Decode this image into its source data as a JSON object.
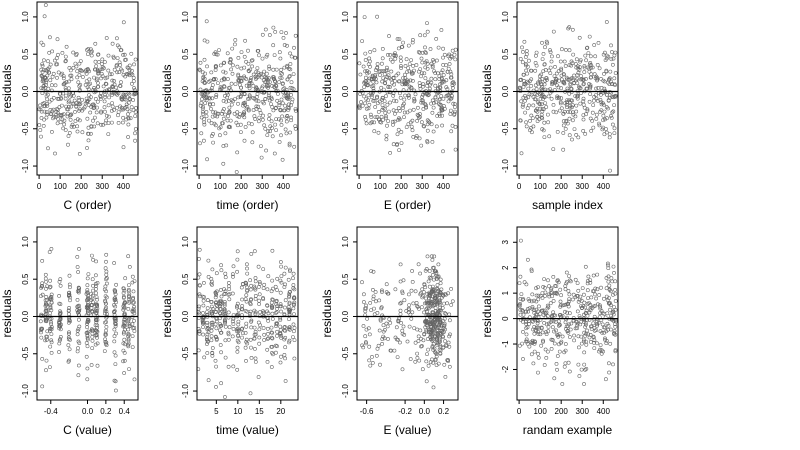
{
  "figure": {
    "point_color": "#666666",
    "line_color": "#000000",
    "background": "#ffffff"
  },
  "chart_data": [
    {
      "type": "scatter",
      "xlabel": "C (order)",
      "ylabel": "residuals",
      "xlim": [
        -10,
        470
      ],
      "ylim": [
        -1.12,
        1.2
      ],
      "xticks": [
        0,
        100,
        200,
        300,
        400
      ],
      "xtick_labels": [
        "0",
        "100",
        "200",
        "300",
        "400"
      ],
      "yticks": [
        -1,
        -0.5,
        0,
        0.5,
        1
      ],
      "ytick_labels": [
        "-1.0",
        "-0.5",
        "0.0",
        "0.5",
        "1.0"
      ],
      "hline": 0,
      "n_points": 460,
      "x_distribution": "uniform",
      "x_range": [
        0,
        460
      ],
      "y_sd": 0.33,
      "seed": 11
    },
    {
      "type": "scatter",
      "xlabel": "time (order)",
      "ylabel": "residuals",
      "xlim": [
        -10,
        470
      ],
      "ylim": [
        -1.12,
        1.2
      ],
      "xticks": [
        0,
        100,
        200,
        300,
        400
      ],
      "xtick_labels": [
        "0",
        "100",
        "200",
        "300",
        "400"
      ],
      "yticks": [
        -1,
        -0.5,
        0,
        0.5,
        1
      ],
      "ytick_labels": [
        "-1.0",
        "-0.5",
        "0.0",
        "0.5",
        "1.0"
      ],
      "hline": 0,
      "n_points": 460,
      "x_distribution": "uniform",
      "x_range": [
        0,
        460
      ],
      "y_sd": 0.33,
      "seed": 23
    },
    {
      "type": "scatter",
      "xlabel": "E (order)",
      "ylabel": "residuals",
      "xlim": [
        -10,
        470
      ],
      "ylim": [
        -1.12,
        1.2
      ],
      "xticks": [
        0,
        100,
        200,
        300,
        400
      ],
      "xtick_labels": [
        "0",
        "100",
        "200",
        "300",
        "400"
      ],
      "yticks": [
        -1,
        -0.5,
        0,
        0.5,
        1
      ],
      "ytick_labels": [
        "-1.0",
        "-0.5",
        "0.0",
        "0.5",
        "1.0"
      ],
      "hline": 0,
      "n_points": 460,
      "x_distribution": "uniform",
      "x_range": [
        0,
        460
      ],
      "y_sd": 0.33,
      "seed": 37
    },
    {
      "type": "scatter",
      "xlabel": "sample index",
      "ylabel": "residuals",
      "xlim": [
        -10,
        470
      ],
      "ylim": [
        -1.12,
        1.2
      ],
      "xticks": [
        0,
        100,
        200,
        300,
        400
      ],
      "xtick_labels": [
        "0",
        "100",
        "200",
        "300",
        "400"
      ],
      "yticks": [
        -1,
        -0.5,
        0,
        0.5,
        1
      ],
      "ytick_labels": [
        "-1.0",
        "-0.5",
        "0.0",
        "0.5",
        "1.0"
      ],
      "hline": 0,
      "n_points": 460,
      "x_distribution": "uniform",
      "x_range": [
        0,
        460
      ],
      "y_sd": 0.33,
      "seed": 41
    },
    {
      "type": "scatter",
      "xlabel": "C (value)",
      "ylabel": "residuals",
      "xlim": [
        -0.55,
        0.55
      ],
      "ylim": [
        -1.12,
        1.2
      ],
      "xticks": [
        -0.4,
        0,
        0.2,
        0.4
      ],
      "xtick_labels": [
        "-0.4",
        "0.0",
        "0.2",
        "0.4"
      ],
      "yticks": [
        -1,
        -0.5,
        0,
        0.5,
        1
      ],
      "ytick_labels": [
        "-1.0",
        "-0.5",
        "0.0",
        "0.5",
        "1.0"
      ],
      "hline": 0,
      "n_points": 460,
      "x_distribution": "columns",
      "x_columns": [
        -0.5,
        -0.45,
        -0.4,
        -0.3,
        -0.2,
        -0.1,
        0,
        0.05,
        0.1,
        0.2,
        0.3,
        0.4,
        0.45,
        0.5
      ],
      "x_jitter": 0.012,
      "y_sd": 0.33,
      "seed": 53
    },
    {
      "type": "scatter",
      "xlabel": "time (value)",
      "ylabel": "residuals",
      "xlim": [
        0.5,
        24
      ],
      "ylim": [
        -1.12,
        1.2
      ],
      "xticks": [
        5,
        10,
        15,
        20
      ],
      "xtick_labels": [
        "5",
        "10",
        "15",
        "20"
      ],
      "yticks": [
        -1,
        -0.5,
        0,
        0.5,
        1
      ],
      "ytick_labels": [
        "-1.0",
        "-0.5",
        "0.0",
        "0.5",
        "1.0"
      ],
      "hline": 0,
      "n_points": 460,
      "x_distribution": "columns",
      "x_columns": [
        1,
        2,
        3,
        4,
        5,
        6,
        7,
        8,
        9,
        10,
        11,
        12,
        13,
        14,
        15,
        16,
        17,
        18,
        19,
        20,
        21,
        22,
        23
      ],
      "x_jitter": 0.2,
      "y_sd": 0.33,
      "seed": 67
    },
    {
      "type": "scatter",
      "xlabel": "E (value)",
      "ylabel": "residuals",
      "xlim": [
        -0.7,
        0.35
      ],
      "ylim": [
        -1.12,
        1.2
      ],
      "xticks": [
        -0.6,
        -0.2,
        0,
        0.2
      ],
      "xtick_labels": [
        "-0.6",
        "-0.2",
        "0.0",
        "0.2"
      ],
      "yticks": [
        -1,
        -0.5,
        0,
        0.5,
        1
      ],
      "ytick_labels": [
        "-1.0",
        "-0.5",
        "0.0",
        "0.5",
        "1.0"
      ],
      "hline": 0,
      "n_points": 460,
      "x_distribution": "skewed",
      "x_range": [
        -0.65,
        0.3
      ],
      "x_mode": 0.1,
      "y_sd": 0.33,
      "seed": 79
    },
    {
      "type": "scatter",
      "xlabel": "randam example",
      "ylabel": "residuals",
      "xlim": [
        -10,
        470
      ],
      "ylim": [
        -3.2,
        3.6
      ],
      "xticks": [
        0,
        100,
        200,
        300,
        400
      ],
      "xtick_labels": [
        "0",
        "100",
        "200",
        "300",
        "400"
      ],
      "yticks": [
        -2,
        -1,
        0,
        1,
        2,
        3
      ],
      "ytick_labels": [
        "-2",
        "-1",
        "0",
        "1",
        "2",
        "3"
      ],
      "hline": 0,
      "n_points": 460,
      "x_distribution": "uniform",
      "x_range": [
        0,
        460
      ],
      "y_sd": 1.0,
      "seed": 97
    }
  ]
}
